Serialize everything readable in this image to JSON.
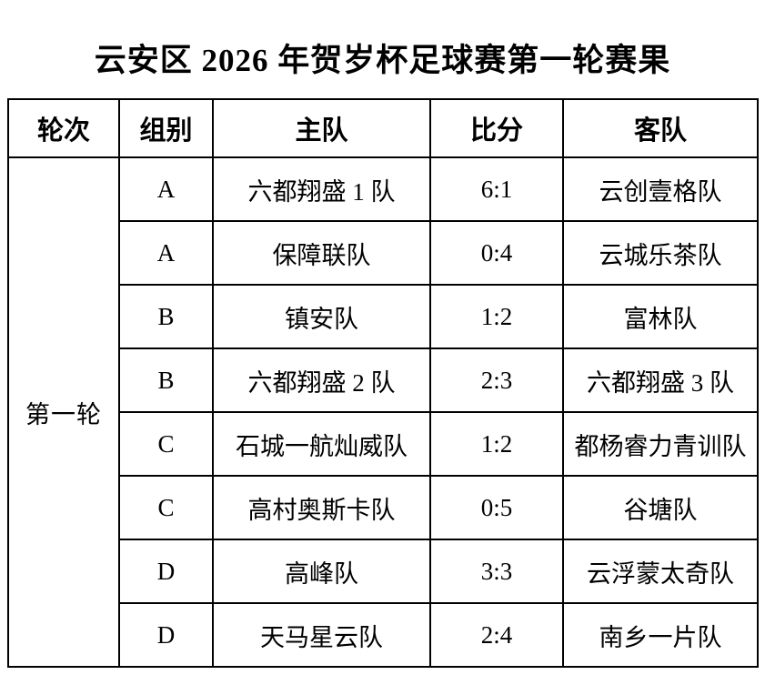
{
  "title": "云安区 2026 年贺岁杯足球赛第一轮赛果",
  "table": {
    "headers": [
      "轮次",
      "组别",
      "主队",
      "比分",
      "客队"
    ],
    "round_label": "第一轮",
    "rows": [
      {
        "group": "A",
        "home": "六都翔盛 1 队",
        "score": "6:1",
        "away": "云创壹格队"
      },
      {
        "group": "A",
        "home": "保障联队",
        "score": "0:4",
        "away": "云城乐茶队"
      },
      {
        "group": "B",
        "home": "镇安队",
        "score": "1:2",
        "away": "富林队"
      },
      {
        "group": "B",
        "home": "六都翔盛 2 队",
        "score": "2:3",
        "away": "六都翔盛 3 队"
      },
      {
        "group": "C",
        "home": "石城一航灿威队",
        "score": "1:2",
        "away": "都杨睿力青训队"
      },
      {
        "group": "C",
        "home": "高村奥斯卡队",
        "score": "0:5",
        "away": "谷塘队"
      },
      {
        "group": "D",
        "home": "高峰队",
        "score": "3:3",
        "away": "云浮蒙太奇队"
      },
      {
        "group": "D",
        "home": "天马星云队",
        "score": "2:4",
        "away": "南乡一片队"
      }
    ]
  },
  "colors": {
    "text": "#000000",
    "border": "#000000",
    "background": "#ffffff"
  }
}
